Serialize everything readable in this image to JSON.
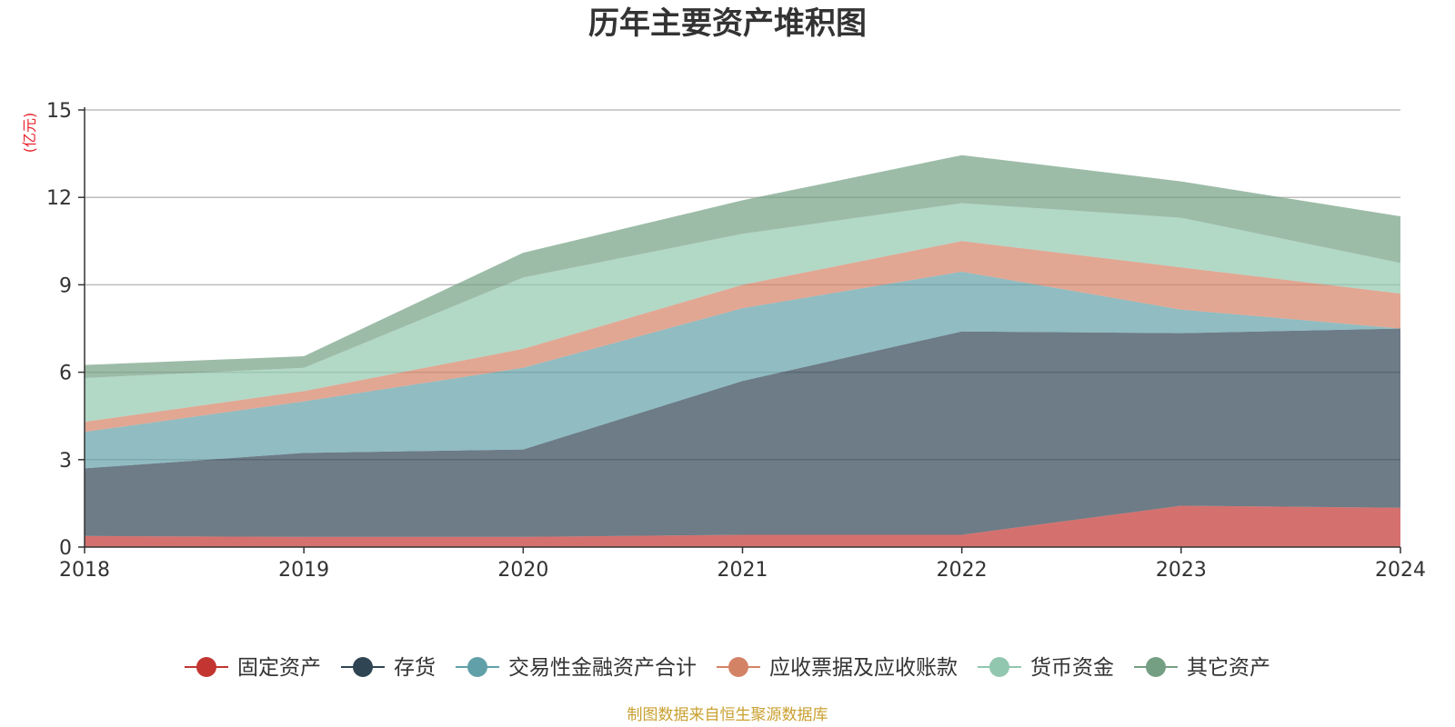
{
  "chart_data": {
    "type": "area",
    "stacked": true,
    "title": "历年主要资产堆积图",
    "ylabel": "(亿元)",
    "ylim": [
      0,
      15
    ],
    "yticks": [
      0,
      3,
      6,
      9,
      12,
      15
    ],
    "categories": [
      "2018",
      "2019",
      "2020",
      "2021",
      "2022",
      "2023",
      "2024"
    ],
    "series": [
      {
        "name": "固定资产",
        "color": "#c23531",
        "values": [
          0.38,
          0.35,
          0.35,
          0.42,
          0.42,
          1.42,
          1.35
        ]
      },
      {
        "name": "存货",
        "color": "#2f4554",
        "values": [
          2.32,
          2.88,
          3.0,
          5.28,
          6.98,
          5.92,
          6.15
        ]
      },
      {
        "name": "交易性金融资产合计",
        "color": "#61a0a8",
        "values": [
          1.25,
          1.77,
          2.8,
          2.5,
          2.05,
          0.81,
          0.0
        ]
      },
      {
        "name": "应收票据及应收账款",
        "color": "#d48265",
        "values": [
          0.35,
          0.35,
          0.65,
          0.8,
          1.05,
          1.45,
          1.2
        ]
      },
      {
        "name": "货币资金",
        "color": "#91c7ae",
        "values": [
          1.5,
          0.8,
          2.45,
          1.75,
          1.3,
          1.7,
          1.05
        ]
      },
      {
        "name": "其它资产",
        "color": "#749f83",
        "values": [
          0.45,
          0.4,
          0.85,
          1.15,
          1.65,
          1.25,
          1.6
        ]
      }
    ]
  },
  "source_note": "制图数据来自恒生聚源数据库"
}
